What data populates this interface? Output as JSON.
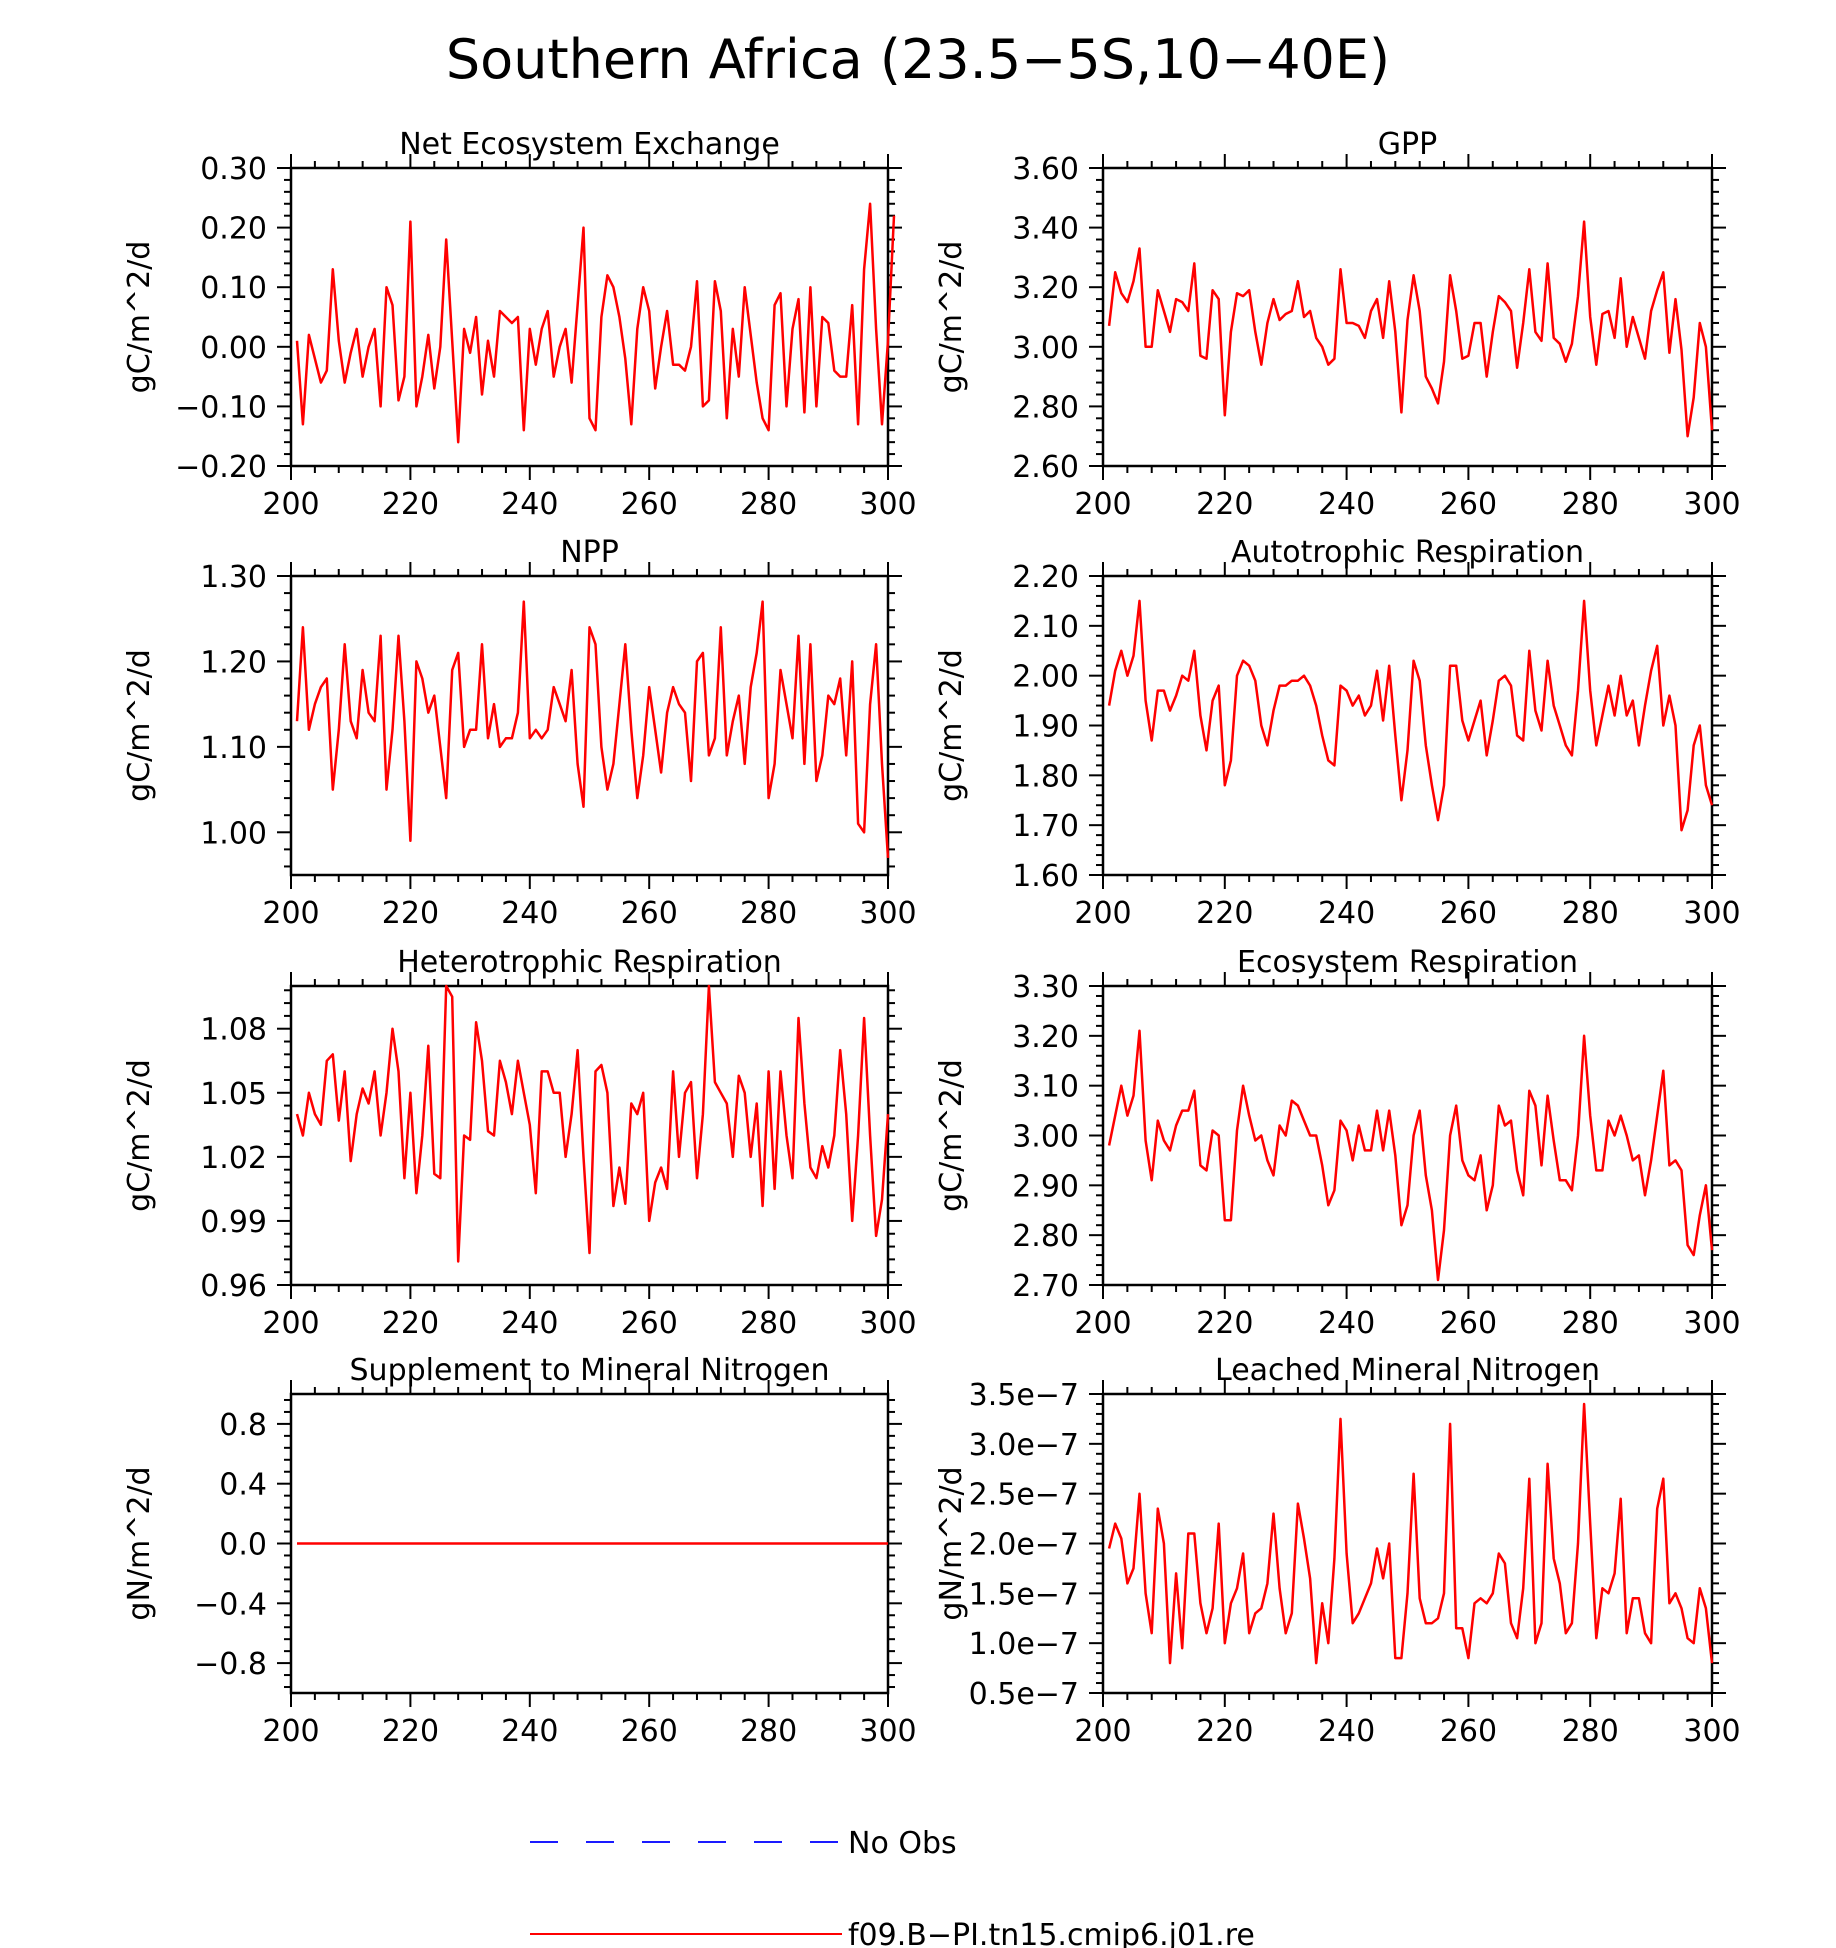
{
  "figure": {
    "title": "Southern Africa (23.5-5S,10-40E)",
    "legend": [
      {
        "label": "No Obs",
        "color": "#1a1aff",
        "dash": true
      },
      {
        "label": "f09.B-PI.tn15.cmip6.j01.re",
        "color": "#ff0000",
        "dash": false
      }
    ]
  },
  "chart_data": [
    {
      "type": "line",
      "title": "Net Ecosystem Exchange",
      "ylabel": "gC/m^2/d",
      "xlim": [
        200,
        300
      ],
      "ylim": [
        -0.2,
        0.3
      ],
      "xticks": [
        200,
        220,
        240,
        260,
        280,
        300
      ],
      "xtick_labels": [
        "200",
        "220",
        "240",
        "260",
        "280",
        "300"
      ],
      "yticks": [
        -0.2,
        -0.1,
        0.0,
        0.1,
        0.2,
        0.3
      ],
      "ytick_labels": [
        "-0.20",
        "-0.10",
        "0.00",
        "0.10",
        "0.20",
        "0.30"
      ],
      "series": [
        {
          "color": "#ff0000",
          "x0": 201,
          "dx": 1,
          "values": [
            0.01,
            -0.13,
            0.02,
            -0.02,
            -0.06,
            -0.04,
            0.13,
            0.01,
            -0.06,
            -0.01,
            0.03,
            -0.05,
            0.0,
            0.03,
            -0.1,
            0.1,
            0.07,
            -0.09,
            -0.05,
            0.21,
            -0.1,
            -0.05,
            0.02,
            -0.07,
            0.0,
            0.18,
            0.01,
            -0.16,
            0.03,
            -0.01,
            0.05,
            -0.08,
            0.01,
            -0.05,
            0.06,
            0.05,
            0.04,
            0.05,
            -0.14,
            0.03,
            -0.03,
            0.03,
            0.06,
            -0.05,
            0.0,
            0.03,
            -0.06,
            0.07,
            0.2,
            -0.12,
            -0.14,
            0.05,
            0.12,
            0.1,
            0.05,
            -0.02,
            -0.13,
            0.03,
            0.1,
            0.06,
            -0.07,
            0.0,
            0.06,
            -0.03,
            -0.03,
            -0.04,
            0.0,
            0.11,
            -0.1,
            -0.09,
            0.11,
            0.06,
            -0.12,
            0.03,
            -0.05,
            0.1,
            0.02,
            -0.06,
            -0.12,
            -0.14,
            0.07,
            0.09,
            -0.1,
            0.03,
            0.08,
            -0.11,
            0.1,
            -0.1,
            0.05,
            0.04,
            -0.04,
            -0.05,
            -0.05,
            0.07,
            -0.13,
            0.13,
            0.24,
            0.03,
            -0.13,
            0.01,
            0.22
          ]
        }
      ]
    },
    {
      "type": "line",
      "title": "GPP",
      "ylabel": "gC/m^2/d",
      "xlim": [
        200,
        300
      ],
      "ylim": [
        2.6,
        3.6
      ],
      "xticks": [
        200,
        220,
        240,
        260,
        280,
        300
      ],
      "xtick_labels": [
        "200",
        "220",
        "240",
        "260",
        "280",
        "300"
      ],
      "yticks": [
        2.6,
        2.8,
        3.0,
        3.2,
        3.4,
        3.6
      ],
      "ytick_labels": [
        "2.60",
        "2.80",
        "3.00",
        "3.20",
        "3.40",
        "3.60"
      ],
      "series": [
        {
          "color": "#ff0000",
          "x0": 201,
          "dx": 1,
          "values": [
            3.07,
            3.25,
            3.18,
            3.15,
            3.22,
            3.33,
            3.0,
            3.0,
            3.19,
            3.12,
            3.05,
            3.16,
            3.15,
            3.12,
            3.28,
            2.97,
            2.96,
            3.19,
            3.16,
            2.77,
            3.05,
            3.18,
            3.17,
            3.19,
            3.05,
            2.94,
            3.08,
            3.16,
            3.09,
            3.11,
            3.12,
            3.22,
            3.1,
            3.12,
            3.03,
            3.0,
            2.94,
            2.96,
            3.26,
            3.08,
            3.08,
            3.07,
            3.03,
            3.12,
            3.16,
            3.03,
            3.22,
            3.05,
            2.78,
            3.09,
            3.24,
            3.12,
            2.9,
            2.86,
            2.81,
            2.95,
            3.24,
            3.12,
            2.96,
            2.97,
            3.08,
            3.08,
            2.9,
            3.05,
            3.17,
            3.15,
            3.12,
            2.93,
            3.08,
            3.26,
            3.05,
            3.02,
            3.28,
            3.03,
            3.01,
            2.95,
            3.01,
            3.17,
            3.42,
            3.1,
            2.94,
            3.11,
            3.12,
            3.03,
            3.23,
            3.0,
            3.1,
            3.03,
            2.96,
            3.12,
            3.19,
            3.25,
            2.98,
            3.16,
            2.99,
            2.7,
            2.83,
            3.08,
            3.0,
            2.72
          ]
        }
      ]
    },
    {
      "type": "line",
      "title": "NPP",
      "ylabel": "gC/m^2/d",
      "xlim": [
        200,
        300
      ],
      "ylim": [
        0.95,
        1.3
      ],
      "xticks": [
        200,
        220,
        240,
        260,
        280,
        300
      ],
      "xtick_labels": [
        "200",
        "220",
        "240",
        "260",
        "280",
        "300"
      ],
      "yticks": [
        1.0,
        1.1,
        1.2,
        1.3
      ],
      "ytick_labels": [
        "1.00",
        "1.10",
        "1.20",
        "1.30"
      ],
      "series": [
        {
          "color": "#ff0000",
          "x0": 201,
          "dx": 1,
          "values": [
            1.13,
            1.24,
            1.12,
            1.15,
            1.17,
            1.18,
            1.05,
            1.12,
            1.22,
            1.13,
            1.11,
            1.19,
            1.14,
            1.13,
            1.23,
            1.05,
            1.12,
            1.23,
            1.13,
            0.99,
            1.2,
            1.18,
            1.14,
            1.16,
            1.1,
            1.04,
            1.19,
            1.21,
            1.1,
            1.12,
            1.12,
            1.22,
            1.11,
            1.15,
            1.1,
            1.11,
            1.11,
            1.14,
            1.27,
            1.11,
            1.12,
            1.11,
            1.12,
            1.17,
            1.15,
            1.13,
            1.19,
            1.08,
            1.03,
            1.24,
            1.22,
            1.1,
            1.05,
            1.08,
            1.15,
            1.22,
            1.12,
            1.04,
            1.09,
            1.17,
            1.12,
            1.07,
            1.14,
            1.17,
            1.15,
            1.14,
            1.06,
            1.2,
            1.21,
            1.09,
            1.11,
            1.24,
            1.09,
            1.13,
            1.16,
            1.08,
            1.17,
            1.21,
            1.27,
            1.04,
            1.08,
            1.19,
            1.15,
            1.11,
            1.23,
            1.08,
            1.22,
            1.06,
            1.09,
            1.16,
            1.15,
            1.18,
            1.09,
            1.2,
            1.01,
            1.0,
            1.15,
            1.22,
            1.08,
            0.97
          ]
        }
      ]
    },
    {
      "type": "line",
      "title": "Autotrophic Respiration",
      "ylabel": "gC/m^2/d",
      "xlim": [
        200,
        300
      ],
      "ylim": [
        1.6,
        2.2
      ],
      "xticks": [
        200,
        220,
        240,
        260,
        280,
        300
      ],
      "xtick_labels": [
        "200",
        "220",
        "240",
        "260",
        "280",
        "300"
      ],
      "yticks": [
        1.6,
        1.7,
        1.8,
        1.9,
        2.0,
        2.1,
        2.2
      ],
      "ytick_labels": [
        "1.60",
        "1.70",
        "1.80",
        "1.90",
        "2.00",
        "2.10",
        "2.20"
      ],
      "series": [
        {
          "color": "#ff0000",
          "x0": 201,
          "dx": 1,
          "values": [
            1.94,
            2.01,
            2.05,
            2.0,
            2.04,
            2.15,
            1.95,
            1.87,
            1.97,
            1.97,
            1.93,
            1.96,
            2.0,
            1.99,
            2.05,
            1.92,
            1.85,
            1.95,
            1.98,
            1.78,
            1.83,
            2.0,
            2.03,
            2.02,
            1.99,
            1.9,
            1.86,
            1.93,
            1.98,
            1.98,
            1.99,
            1.99,
            2.0,
            1.98,
            1.94,
            1.88,
            1.83,
            1.82,
            1.98,
            1.97,
            1.94,
            1.96,
            1.92,
            1.94,
            2.01,
            1.91,
            2.02,
            1.88,
            1.75,
            1.85,
            2.03,
            1.99,
            1.86,
            1.78,
            1.71,
            1.78,
            2.02,
            2.02,
            1.91,
            1.87,
            1.91,
            1.95,
            1.84,
            1.91,
            1.99,
            2.0,
            1.98,
            1.88,
            1.87,
            2.05,
            1.93,
            1.89,
            2.03,
            1.94,
            1.9,
            1.86,
            1.84,
            1.97,
            2.15,
            1.97,
            1.86,
            1.92,
            1.98,
            1.92,
            2.0,
            1.92,
            1.95,
            1.86,
            1.94,
            2.01,
            2.06,
            1.9,
            1.96,
            1.9,
            1.69,
            1.73,
            1.86,
            1.9,
            1.78,
            1.74
          ]
        }
      ]
    },
    {
      "type": "line",
      "title": "Heterotrophic Respiration",
      "ylabel": "gC/m^2/d",
      "xlim": [
        200,
        300
      ],
      "ylim": [
        0.96,
        1.1
      ],
      "xticks": [
        200,
        220,
        240,
        260,
        280,
        300
      ],
      "xtick_labels": [
        "200",
        "220",
        "240",
        "260",
        "280",
        "300"
      ],
      "yticks": [
        0.96,
        0.99,
        1.02,
        1.05,
        1.08
      ],
      "ytick_labels": [
        "0.96",
        "0.99",
        "1.02",
        "1.05",
        "1.08"
      ],
      "series": [
        {
          "color": "#ff0000",
          "x0": 201,
          "dx": 1,
          "values": [
            1.04,
            1.03,
            1.05,
            1.04,
            1.035,
            1.065,
            1.068,
            1.037,
            1.06,
            1.018,
            1.04,
            1.052,
            1.045,
            1.06,
            1.03,
            1.05,
            1.08,
            1.06,
            1.01,
            1.05,
            1.003,
            1.03,
            1.072,
            1.012,
            1.01,
            1.1,
            1.095,
            0.971,
            1.03,
            1.028,
            1.083,
            1.065,
            1.032,
            1.03,
            1.065,
            1.055,
            1.04,
            1.065,
            1.05,
            1.035,
            1.003,
            1.06,
            1.06,
            1.05,
            1.05,
            1.02,
            1.04,
            1.07,
            1.02,
            0.975,
            1.06,
            1.063,
            1.05,
            0.997,
            1.015,
            0.998,
            1.045,
            1.04,
            1.05,
            0.99,
            1.008,
            1.015,
            1.005,
            1.06,
            1.02,
            1.05,
            1.055,
            1.01,
            1.04,
            1.1,
            1.055,
            1.05,
            1.045,
            1.02,
            1.058,
            1.05,
            1.02,
            1.045,
            0.997,
            1.06,
            1.005,
            1.06,
            1.03,
            1.01,
            1.085,
            1.045,
            1.015,
            1.01,
            1.025,
            1.015,
            1.03,
            1.07,
            1.04,
            0.99,
            1.03,
            1.085,
            1.03,
            0.983,
            1.0,
            1.04
          ]
        }
      ]
    },
    {
      "type": "line",
      "title": "Ecosystem Respiration",
      "ylabel": "gC/m^2/d",
      "xlim": [
        200,
        300
      ],
      "ylim": [
        2.7,
        3.3
      ],
      "xticks": [
        200,
        220,
        240,
        260,
        280,
        300
      ],
      "xtick_labels": [
        "200",
        "220",
        "240",
        "260",
        "280",
        "300"
      ],
      "yticks": [
        2.7,
        2.8,
        2.9,
        3.0,
        3.1,
        3.2,
        3.3
      ],
      "ytick_labels": [
        "2.70",
        "2.80",
        "2.90",
        "3.00",
        "3.10",
        "3.20",
        "3.30"
      ],
      "series": [
        {
          "color": "#ff0000",
          "x0": 201,
          "dx": 1,
          "values": [
            2.98,
            3.04,
            3.1,
            3.04,
            3.08,
            3.21,
            2.99,
            2.91,
            3.03,
            2.99,
            2.97,
            3.02,
            3.05,
            3.05,
            3.09,
            2.94,
            2.93,
            3.01,
            3.0,
            2.83,
            2.83,
            3.01,
            3.1,
            3.04,
            2.99,
            3.0,
            2.95,
            2.92,
            3.02,
            3.0,
            3.07,
            3.06,
            3.03,
            3.0,
            3.0,
            2.94,
            2.86,
            2.89,
            3.03,
            3.01,
            2.95,
            3.02,
            2.97,
            2.97,
            3.05,
            2.97,
            3.05,
            2.96,
            2.82,
            2.86,
            3.0,
            3.05,
            2.92,
            2.85,
            2.71,
            2.81,
            3.0,
            3.06,
            2.95,
            2.92,
            2.91,
            2.96,
            2.85,
            2.9,
            3.06,
            3.02,
            3.03,
            2.93,
            2.88,
            3.09,
            3.06,
            2.94,
            3.08,
            2.99,
            2.91,
            2.91,
            2.89,
            3.0,
            3.2,
            3.04,
            2.93,
            2.93,
            3.03,
            3.0,
            3.04,
            3.0,
            2.95,
            2.96,
            2.88,
            2.95,
            3.04,
            3.13,
            2.94,
            2.95,
            2.93,
            2.78,
            2.76,
            2.84,
            2.9,
            2.77
          ]
        }
      ]
    },
    {
      "type": "line",
      "title": "Supplement to Mineral Nitrogen",
      "ylabel": "gN/m^2/d",
      "xlim": [
        200,
        300
      ],
      "ylim": [
        -1.0,
        1.0
      ],
      "xticks": [
        200,
        220,
        240,
        260,
        280,
        300
      ],
      "xtick_labels": [
        "200",
        "220",
        "240",
        "260",
        "280",
        "300"
      ],
      "yticks": [
        -0.8,
        -0.4,
        0.0,
        0.4,
        0.8
      ],
      "ytick_labels": [
        "-0.8",
        "-0.4",
        "0.0",
        "0.4",
        "0.8"
      ],
      "series": [
        {
          "color": "#ff0000",
          "x": [
            201,
            300
          ],
          "values": [
            0.0,
            0.0
          ]
        }
      ]
    },
    {
      "type": "line",
      "title": "Leached Mineral Nitrogen",
      "ylabel": "gN/m^2/d",
      "xlim": [
        200,
        300
      ],
      "ylim": [
        5e-08,
        3.5e-07
      ],
      "xticks": [
        200,
        220,
        240,
        260,
        280,
        300
      ],
      "xtick_labels": [
        "200",
        "220",
        "240",
        "260",
        "280",
        "300"
      ],
      "yticks": [
        5e-08,
        1e-07,
        1.5e-07,
        2e-07,
        2.5e-07,
        3e-07,
        3.5e-07
      ],
      "ytick_labels": [
        "0.5e-7",
        "1.0e-7",
        "1.5e-7",
        "2.0e-7",
        "2.5e-7",
        "3.0e-7",
        "3.5e-7"
      ],
      "series": [
        {
          "color": "#ff0000",
          "x0": 201,
          "dx": 1,
          "values": [
            1.95e-07,
            2.2e-07,
            2.05e-07,
            1.6e-07,
            1.75e-07,
            2.5e-07,
            1.5e-07,
            1.1e-07,
            2.35e-07,
            2e-07,
            8e-08,
            1.7e-07,
            9.5e-08,
            2.1e-07,
            2.1e-07,
            1.4e-07,
            1.1e-07,
            1.35e-07,
            2.2e-07,
            1e-07,
            1.4e-07,
            1.55e-07,
            1.9e-07,
            1.1e-07,
            1.3e-07,
            1.35e-07,
            1.6e-07,
            2.3e-07,
            1.55e-07,
            1.1e-07,
            1.3e-07,
            2.4e-07,
            2.05e-07,
            1.65e-07,
            8e-08,
            1.4e-07,
            1e-07,
            1.85e-07,
            3.25e-07,
            1.9e-07,
            1.2e-07,
            1.3e-07,
            1.45e-07,
            1.6e-07,
            1.95e-07,
            1.65e-07,
            2e-07,
            8.5e-08,
            8.5e-08,
            1.5e-07,
            2.7e-07,
            1.45e-07,
            1.2e-07,
            1.2e-07,
            1.25e-07,
            1.5e-07,
            3.2e-07,
            1.15e-07,
            1.15e-07,
            8.5e-08,
            1.4e-07,
            1.45e-07,
            1.4e-07,
            1.5e-07,
            1.9e-07,
            1.8e-07,
            1.2e-07,
            1.05e-07,
            1.55e-07,
            2.65e-07,
            1e-07,
            1.2e-07,
            2.8e-07,
            1.85e-07,
            1.6e-07,
            1.1e-07,
            1.2e-07,
            2e-07,
            3.4e-07,
            2.2e-07,
            1.05e-07,
            1.55e-07,
            1.5e-07,
            1.7e-07,
            2.45e-07,
            1.1e-07,
            1.45e-07,
            1.45e-07,
            1.1e-07,
            1e-07,
            2.35e-07,
            2.65e-07,
            1.4e-07,
            1.5e-07,
            1.35e-07,
            1.05e-07,
            1e-07,
            1.55e-07,
            1.35e-07,
            8e-08
          ]
        }
      ]
    }
  ]
}
